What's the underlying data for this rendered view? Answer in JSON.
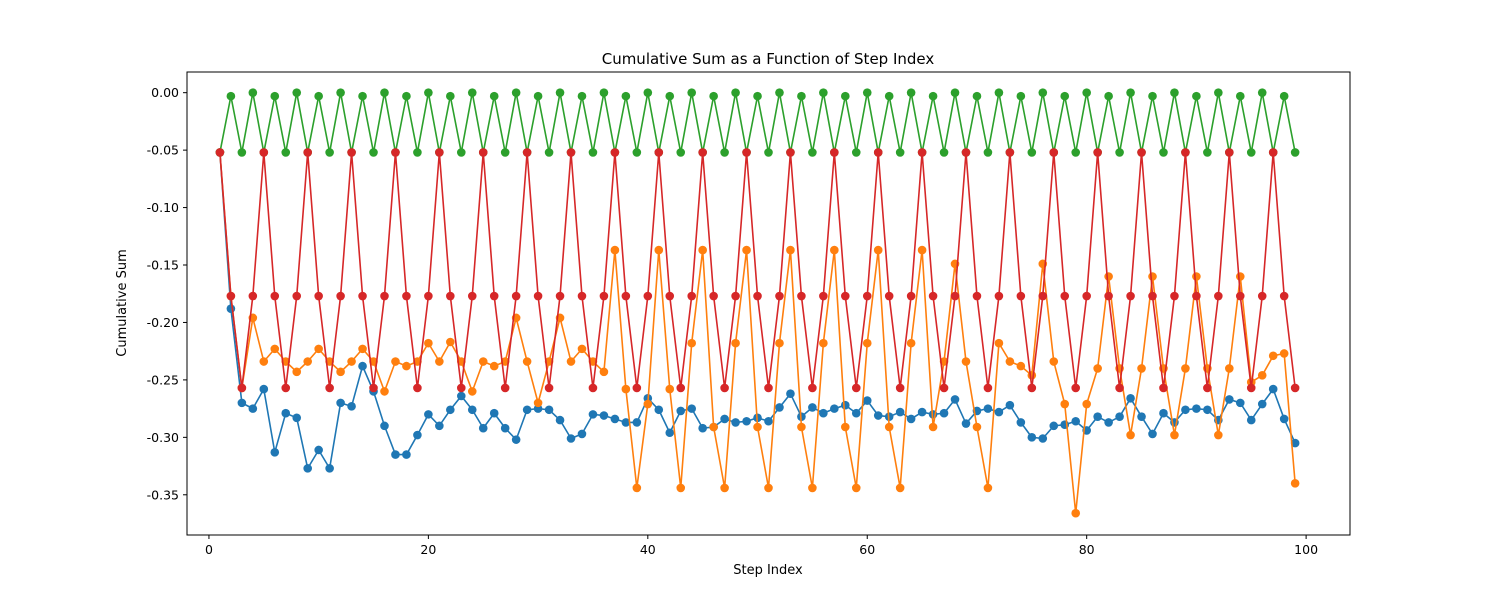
{
  "chart_data": {
    "type": "line",
    "title": "Cumulative Sum as a Function of Step Index",
    "xlabel": "Step Index",
    "ylabel": "Cumulative Sum",
    "xlim": [
      -2,
      104
    ],
    "ylim": [
      -0.385,
      0.018
    ],
    "x_ticks": [
      0,
      20,
      40,
      60,
      80,
      100
    ],
    "y_ticks": [
      0.0,
      -0.05,
      -0.1,
      -0.15,
      -0.2,
      -0.25,
      -0.3,
      -0.35
    ],
    "y_tick_labels": [
      "0.00",
      "-0.05",
      "-0.10",
      "-0.15",
      "-0.20",
      "-0.25",
      "-0.30",
      "-0.35"
    ],
    "grid": false,
    "legend": "none",
    "marker": "circle",
    "series": [
      {
        "color": "#1f77b4",
        "x": [
          1,
          2,
          3,
          4,
          5,
          6,
          7,
          8,
          9,
          10,
          11,
          12,
          13,
          14,
          15,
          16,
          17,
          18,
          19,
          20,
          21,
          22,
          23,
          24,
          25,
          26,
          27,
          28,
          29,
          30,
          31,
          32,
          33,
          34,
          35,
          36,
          37,
          38,
          39,
          40,
          41,
          42,
          43,
          44,
          45,
          46,
          47,
          48,
          49,
          50,
          51,
          52,
          53,
          54,
          55,
          56,
          57,
          58,
          59,
          60,
          61,
          62,
          63,
          64,
          65,
          66,
          67,
          68,
          69,
          70,
          71,
          72,
          73,
          74,
          75,
          76,
          77,
          78,
          79,
          80,
          81,
          82,
          83,
          84,
          85,
          86,
          87,
          88,
          89,
          90,
          91,
          92,
          93,
          94,
          95,
          96,
          97,
          98,
          99
        ],
        "y": [
          -0.052,
          -0.188,
          -0.27,
          -0.275,
          -0.258,
          -0.313,
          -0.279,
          -0.283,
          -0.327,
          -0.311,
          -0.327,
          -0.27,
          -0.273,
          -0.238,
          -0.26,
          -0.29,
          -0.315,
          -0.315,
          -0.298,
          -0.28,
          -0.29,
          -0.276,
          -0.264,
          -0.276,
          -0.292,
          -0.279,
          -0.292,
          -0.302,
          -0.276,
          -0.275,
          -0.276,
          -0.285,
          -0.301,
          -0.297,
          -0.28,
          -0.281,
          -0.284,
          -0.287,
          -0.287,
          -0.266,
          -0.276,
          -0.296,
          -0.277,
          -0.275,
          -0.292,
          -0.291,
          -0.284,
          -0.287,
          -0.286,
          -0.283,
          -0.286,
          -0.274,
          -0.262,
          -0.282,
          -0.274,
          -0.279,
          -0.275,
          -0.272,
          -0.279,
          -0.268,
          -0.281,
          -0.282,
          -0.278,
          -0.284,
          -0.278,
          -0.28,
          -0.279,
          -0.267,
          -0.288,
          -0.277,
          -0.275,
          -0.278,
          -0.272,
          -0.287,
          -0.3,
          -0.301,
          -0.29,
          -0.289,
          -0.286,
          -0.294,
          -0.282,
          -0.287,
          -0.282,
          -0.266,
          -0.282,
          -0.297,
          -0.279,
          -0.287,
          -0.276,
          -0.275,
          -0.276,
          -0.285,
          -0.267,
          -0.27,
          -0.285,
          -0.271,
          -0.258,
          -0.284,
          -0.305
        ]
      },
      {
        "color": "#ff7f0e",
        "x": [
          1,
          2,
          3,
          4,
          5,
          6,
          7,
          8,
          9,
          10,
          11,
          12,
          13,
          14,
          15,
          16,
          17,
          18,
          19,
          20,
          21,
          22,
          23,
          24,
          25,
          26,
          27,
          28,
          29,
          30,
          31,
          32,
          33,
          34,
          35,
          36,
          37,
          38,
          39,
          40,
          41,
          42,
          43,
          44,
          45,
          46,
          47,
          48,
          49,
          50,
          51,
          52,
          53,
          54,
          55,
          56,
          57,
          58,
          59,
          60,
          61,
          62,
          63,
          64,
          65,
          66,
          67,
          68,
          69,
          70,
          71,
          72,
          73,
          74,
          75,
          76,
          77,
          78,
          79,
          80,
          81,
          82,
          83,
          84,
          85,
          86,
          87,
          88,
          89,
          90,
          91,
          92,
          93,
          94,
          95,
          96,
          97,
          98,
          99
        ],
        "y": [
          -0.052,
          -0.177,
          -0.257,
          -0.196,
          -0.234,
          -0.223,
          -0.234,
          -0.243,
          -0.234,
          -0.223,
          -0.234,
          -0.243,
          -0.234,
          -0.223,
          -0.234,
          -0.26,
          -0.234,
          -0.238,
          -0.234,
          -0.218,
          -0.234,
          -0.217,
          -0.234,
          -0.26,
          -0.234,
          -0.238,
          -0.234,
          -0.196,
          -0.234,
          -0.27,
          -0.234,
          -0.196,
          -0.234,
          -0.223,
          -0.234,
          -0.243,
          -0.137,
          -0.258,
          -0.344,
          -0.271,
          -0.137,
          -0.258,
          -0.344,
          -0.218,
          -0.137,
          -0.291,
          -0.344,
          -0.218,
          -0.137,
          -0.291,
          -0.344,
          -0.218,
          -0.137,
          -0.291,
          -0.344,
          -0.218,
          -0.137,
          -0.291,
          -0.344,
          -0.218,
          -0.137,
          -0.291,
          -0.344,
          -0.218,
          -0.137,
          -0.291,
          -0.234,
          -0.149,
          -0.234,
          -0.291,
          -0.344,
          -0.218,
          -0.234,
          -0.238,
          -0.246,
          -0.149,
          -0.234,
          -0.271,
          -0.366,
          -0.271,
          -0.24,
          -0.16,
          -0.24,
          -0.298,
          -0.24,
          -0.16,
          -0.24,
          -0.298,
          -0.24,
          -0.16,
          -0.24,
          -0.298,
          -0.24,
          -0.16,
          -0.252,
          -0.246,
          -0.229,
          -0.227,
          -0.34
        ]
      },
      {
        "color": "#2ca02c",
        "x": [
          1,
          2,
          3,
          4,
          5,
          6,
          7,
          8,
          9,
          10,
          11,
          12,
          13,
          14,
          15,
          16,
          17,
          18,
          19,
          20,
          21,
          22,
          23,
          24,
          25,
          26,
          27,
          28,
          29,
          30,
          31,
          32,
          33,
          34,
          35,
          36,
          37,
          38,
          39,
          40,
          41,
          42,
          43,
          44,
          45,
          46,
          47,
          48,
          49,
          50,
          51,
          52,
          53,
          54,
          55,
          56,
          57,
          58,
          59,
          60,
          61,
          62,
          63,
          64,
          65,
          66,
          67,
          68,
          69,
          70,
          71,
          72,
          73,
          74,
          75,
          76,
          77,
          78,
          79,
          80,
          81,
          82,
          83,
          84,
          85,
          86,
          87,
          88,
          89,
          90,
          91,
          92,
          93,
          94,
          95,
          96,
          97,
          98,
          99
        ],
        "y": [
          -0.052,
          -0.003,
          -0.052,
          0.0,
          -0.052,
          -0.003,
          -0.052,
          0.0,
          -0.052,
          -0.003,
          -0.052,
          0.0,
          -0.052,
          -0.003,
          -0.052,
          0.0,
          -0.052,
          -0.003,
          -0.052,
          0.0,
          -0.052,
          -0.003,
          -0.052,
          0.0,
          -0.052,
          -0.003,
          -0.052,
          0.0,
          -0.052,
          -0.003,
          -0.052,
          0.0,
          -0.052,
          -0.003,
          -0.052,
          0.0,
          -0.052,
          -0.003,
          -0.052,
          0.0,
          -0.052,
          -0.003,
          -0.052,
          0.0,
          -0.052,
          -0.003,
          -0.052,
          0.0,
          -0.052,
          -0.003,
          -0.052,
          0.0,
          -0.052,
          -0.003,
          -0.052,
          0.0,
          -0.052,
          -0.003,
          -0.052,
          0.0,
          -0.052,
          -0.003,
          -0.052,
          0.0,
          -0.052,
          -0.003,
          -0.052,
          0.0,
          -0.052,
          -0.003,
          -0.052,
          0.0,
          -0.052,
          -0.003,
          -0.052,
          0.0,
          -0.052,
          -0.003,
          -0.052,
          0.0,
          -0.052,
          -0.003,
          -0.052,
          0.0,
          -0.052,
          -0.003,
          -0.052,
          0.0,
          -0.052,
          -0.003,
          -0.052,
          0.0,
          -0.052,
          -0.003,
          -0.052,
          0.0,
          -0.052,
          -0.003,
          -0.052
        ]
      },
      {
        "color": "#d62728",
        "x": [
          1,
          2,
          3,
          4,
          5,
          6,
          7,
          8,
          9,
          10,
          11,
          12,
          13,
          14,
          15,
          16,
          17,
          18,
          19,
          20,
          21,
          22,
          23,
          24,
          25,
          26,
          27,
          28,
          29,
          30,
          31,
          32,
          33,
          34,
          35,
          36,
          37,
          38,
          39,
          40,
          41,
          42,
          43,
          44,
          45,
          46,
          47,
          48,
          49,
          50,
          51,
          52,
          53,
          54,
          55,
          56,
          57,
          58,
          59,
          60,
          61,
          62,
          63,
          64,
          65,
          66,
          67,
          68,
          69,
          70,
          71,
          72,
          73,
          74,
          75,
          76,
          77,
          78,
          79,
          80,
          81,
          82,
          83,
          84,
          85,
          86,
          87,
          88,
          89,
          90,
          91,
          92,
          93,
          94,
          95,
          96,
          97,
          98,
          99
        ],
        "y": [
          -0.052,
          -0.177,
          -0.257,
          -0.177,
          -0.052,
          -0.177,
          -0.257,
          -0.177,
          -0.052,
          -0.177,
          -0.257,
          -0.177,
          -0.052,
          -0.177,
          -0.257,
          -0.177,
          -0.052,
          -0.177,
          -0.257,
          -0.177,
          -0.052,
          -0.177,
          -0.257,
          -0.177,
          -0.052,
          -0.177,
          -0.257,
          -0.177,
          -0.052,
          -0.177,
          -0.257,
          -0.177,
          -0.052,
          -0.177,
          -0.257,
          -0.177,
          -0.052,
          -0.177,
          -0.257,
          -0.177,
          -0.052,
          -0.177,
          -0.257,
          -0.177,
          -0.052,
          -0.177,
          -0.257,
          -0.177,
          -0.052,
          -0.177,
          -0.257,
          -0.177,
          -0.052,
          -0.177,
          -0.257,
          -0.177,
          -0.052,
          -0.177,
          -0.257,
          -0.177,
          -0.052,
          -0.177,
          -0.257,
          -0.177,
          -0.052,
          -0.177,
          -0.257,
          -0.177,
          -0.052,
          -0.177,
          -0.257,
          -0.177,
          -0.052,
          -0.177,
          -0.257,
          -0.177,
          -0.052,
          -0.177,
          -0.257,
          -0.177,
          -0.052,
          -0.177,
          -0.257,
          -0.177,
          -0.052,
          -0.177,
          -0.257,
          -0.177,
          -0.052,
          -0.177,
          -0.257,
          -0.177,
          -0.052,
          -0.177,
          -0.257,
          -0.177,
          -0.052,
          -0.177,
          -0.257
        ]
      }
    ]
  }
}
